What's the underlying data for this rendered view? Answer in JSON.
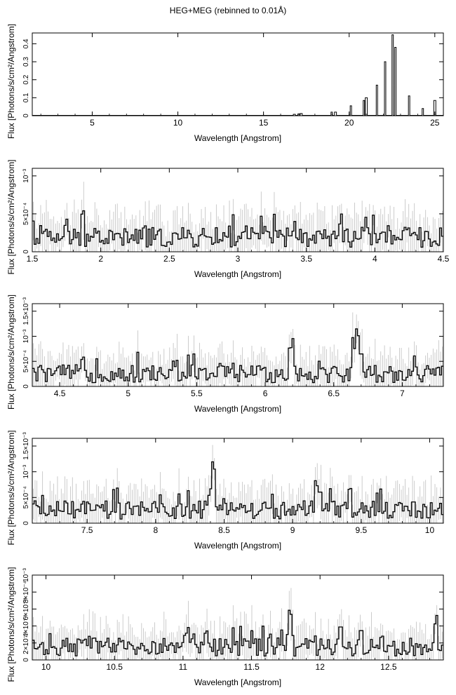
{
  "title": "HEG+MEG (rebinned to 0.01Å)",
  "chart_data": [
    {
      "type": "line",
      "xlabel": "Wavelength [Angstrom]",
      "ylabel": "Flux [Photons/s/cm²/Angstrom]",
      "xlim": [
        1.5,
        25.5
      ],
      "ylim": [
        0,
        0.46
      ],
      "xticks": [
        5,
        10,
        15,
        20,
        25
      ],
      "xtick_labels": [
        "5",
        "10",
        "15",
        "20",
        "25"
      ],
      "yticks": [
        0,
        0.1,
        0.2,
        0.3,
        0.4
      ],
      "ytick_labels": [
        "0",
        "0.1",
        "0.2",
        "0.3",
        "0.4"
      ],
      "baseline": 0.002,
      "peaks": [
        {
          "x": 16.8,
          "y": 0.008
        },
        {
          "x": 17.05,
          "y": 0.01
        },
        {
          "x": 17.2,
          "y": 0.012
        },
        {
          "x": 18.97,
          "y": 0.02
        },
        {
          "x": 19.2,
          "y": 0.02
        },
        {
          "x": 20.1,
          "y": 0.055
        },
        {
          "x": 20.85,
          "y": 0.085
        },
        {
          "x": 21.0,
          "y": 0.1
        },
        {
          "x": 21.6,
          "y": 0.17
        },
        {
          "x": 22.1,
          "y": 0.3
        },
        {
          "x": 22.55,
          "y": 0.45
        },
        {
          "x": 22.7,
          "y": 0.38
        },
        {
          "x": 23.5,
          "y": 0.11
        },
        {
          "x": 24.3,
          "y": 0.04
        },
        {
          "x": 25.0,
          "y": 0.085
        }
      ]
    },
    {
      "type": "line",
      "xlabel": "Wavelength [Angstrom]",
      "ylabel": "Flux [Photons/s/cm²/Angstrom]",
      "xlim": [
        1.5,
        4.5
      ],
      "ylim": [
        0,
        0.0011
      ],
      "xticks": [
        1.5,
        2,
        2.5,
        3,
        3.5,
        4,
        4.5
      ],
      "xtick_labels": [
        "1.5",
        "2",
        "2.5",
        "3",
        "3.5",
        "4",
        "4.5"
      ],
      "yticks": [
        0,
        0.0005,
        0.001
      ],
      "ytick_labels": [
        "0",
        "5×10⁻⁴",
        "10⁻³"
      ],
      "noise_level": 0.00022,
      "peaks": [
        {
          "x": 1.75,
          "y": 0.00045
        },
        {
          "x": 1.87,
          "y": 0.0006
        },
        {
          "x": 2.32,
          "y": 0.00038
        },
        {
          "x": 3.06,
          "y": 0.00035
        },
        {
          "x": 3.2,
          "y": 0.00035
        },
        {
          "x": 4.1,
          "y": 0.00036
        }
      ]
    },
    {
      "type": "line",
      "xlabel": "Wavelength [Angstrom]",
      "ylabel": "Flux [Photons/s/cm²/Angstrom]",
      "xlim": [
        4.3,
        7.3
      ],
      "ylim": [
        0,
        0.00165
      ],
      "xticks": [
        4.5,
        5,
        5.5,
        6,
        6.5,
        7
      ],
      "xtick_labels": [
        "4.5",
        "5",
        "5.5",
        "6",
        "6.5",
        "7"
      ],
      "yticks": [
        0,
        0.0005,
        0.001,
        0.0015
      ],
      "ytick_labels": [
        "0",
        "5×10⁻⁴",
        "10⁻³",
        "1.5×10⁻³"
      ],
      "noise_level": 0.0003,
      "peaks": [
        {
          "x": 4.67,
          "y": 0.00065
        },
        {
          "x": 6.18,
          "y": 0.00085
        },
        {
          "x": 6.2,
          "y": 0.001
        },
        {
          "x": 6.64,
          "y": 0.001
        },
        {
          "x": 6.67,
          "y": 0.00125
        },
        {
          "x": 6.7,
          "y": 0.00075
        }
      ]
    },
    {
      "type": "line",
      "xlabel": "Wavelength [Angstrom]",
      "ylabel": "Flux [Photons/s/cm²/Angstrom]",
      "xlim": [
        7.1,
        10.1
      ],
      "ylim": [
        0,
        0.00165
      ],
      "xticks": [
        7.5,
        8,
        8.5,
        9,
        9.5,
        10
      ],
      "xtick_labels": [
        "7.5",
        "8",
        "8.5",
        "9",
        "9.5",
        "10"
      ],
      "yticks": [
        0,
        0.0005,
        0.001,
        0.0015
      ],
      "ytick_labels": [
        "0",
        "5×10⁻⁴",
        "10⁻³",
        "1.5×10⁻³"
      ],
      "noise_level": 0.0003,
      "peaks": [
        {
          "x": 8.42,
          "y": 0.0013
        },
        {
          "x": 8.4,
          "y": 0.0007
        },
        {
          "x": 8.5,
          "y": 0.0005
        },
        {
          "x": 9.17,
          "y": 0.0009
        },
        {
          "x": 9.2,
          "y": 0.0007
        },
        {
          "x": 9.42,
          "y": 0.00075
        }
      ]
    },
    {
      "type": "line",
      "xlabel": "Wavelength [Angstrom]",
      "ylabel": "Flux [Photons/s/cm²/Angstrom]",
      "xlim": [
        9.9,
        12.9
      ],
      "ylim": [
        0,
        0.001
      ],
      "xticks": [
        10,
        10.5,
        11,
        11.5,
        12,
        12.5
      ],
      "xtick_labels": [
        "10",
        "10.5",
        "11",
        "11.5",
        "12",
        "12.5"
      ],
      "yticks": [
        0,
        0.0002,
        0.0004,
        0.0006,
        0.0008,
        0.001
      ],
      "ytick_labels": [
        "0",
        "2×10⁻⁴",
        "4×10⁻⁴",
        "6×10⁻⁴",
        "8×10⁻⁴",
        "10⁻³"
      ],
      "noise_level": 0.00018,
      "peaks": [
        {
          "x": 10.24,
          "y": 0.00028
        },
        {
          "x": 11.02,
          "y": 0.00035
        },
        {
          "x": 11.17,
          "y": 0.00038
        },
        {
          "x": 11.78,
          "y": 0.00065
        },
        {
          "x": 12.15,
          "y": 0.00045
        },
        {
          "x": 12.3,
          "y": 0.0004
        },
        {
          "x": 12.85,
          "y": 0.00055
        }
      ]
    }
  ]
}
